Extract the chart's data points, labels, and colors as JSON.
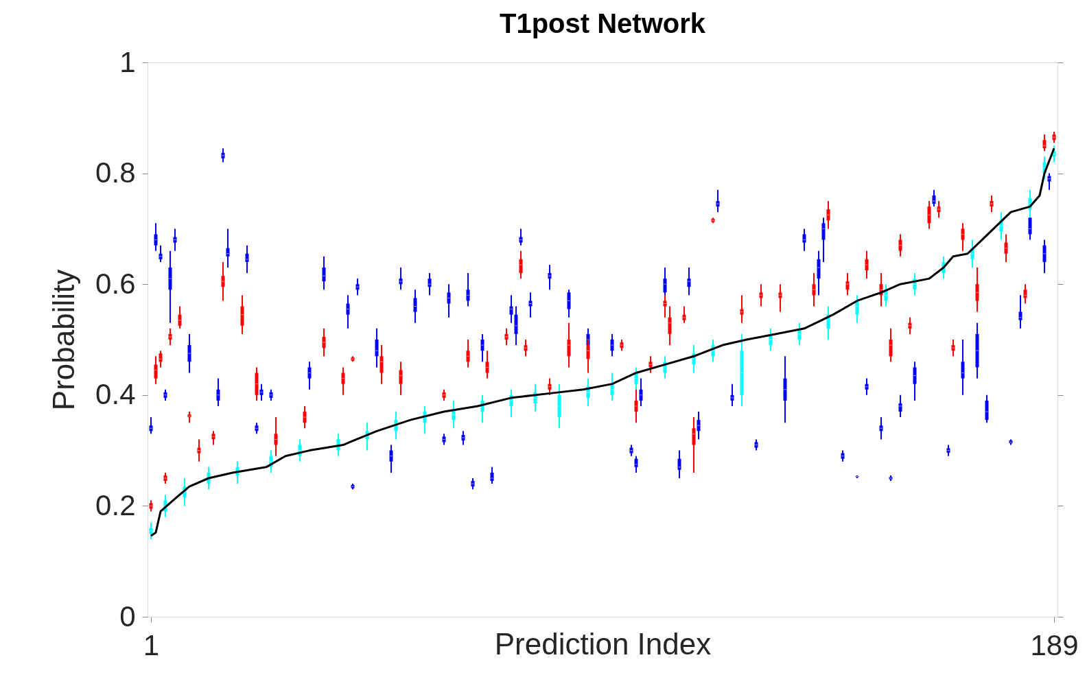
{
  "chart_data": {
    "type": "box",
    "title": "T1post Network",
    "xlabel": "Prediction Index",
    "ylabel": "Probability",
    "xlim": [
      1,
      189
    ],
    "xticks": [
      1,
      189
    ],
    "ylim": [
      0,
      1
    ],
    "yticks": [
      0,
      0.2,
      0.4,
      0.6,
      0.8,
      1
    ],
    "grid": false,
    "series": [
      {
        "type": "box",
        "color": "#0000ff",
        "x": [
          1,
          2,
          3,
          4,
          5,
          6,
          9,
          15,
          16,
          17,
          21,
          23,
          24,
          26,
          34,
          37,
          42,
          43,
          44,
          48,
          51,
          53,
          56,
          59,
          62,
          63,
          66,
          67,
          68,
          70,
          72,
          76,
          77,
          78,
          80,
          84,
          88,
          92,
          97,
          101,
          102,
          103,
          108,
          111,
          113,
          115,
          119,
          122,
          127,
          133,
          137,
          140,
          141,
          145,
          148,
          150,
          153,
          155,
          157,
          160,
          164,
          167,
          170,
          173,
          175,
          180,
          182,
          184,
          187,
          188
        ],
        "boxes": [
          {
            "low": 0.33,
            "q1": 0.335,
            "median": 0.34,
            "q3": 0.345,
            "high": 0.36
          },
          {
            "low": 0.66,
            "q1": 0.67,
            "median": 0.68,
            "q3": 0.69,
            "high": 0.71
          },
          {
            "low": 0.64,
            "q1": 0.645,
            "median": 0.65,
            "q3": 0.655,
            "high": 0.67
          },
          {
            "low": 0.39,
            "q1": 0.395,
            "median": 0.4,
            "q3": 0.405,
            "high": 0.41
          },
          {
            "low": 0.53,
            "q1": 0.59,
            "median": 0.61,
            "q3": 0.63,
            "high": 0.66
          },
          {
            "low": 0.66,
            "q1": 0.675,
            "median": 0.68,
            "q3": 0.685,
            "high": 0.7
          },
          {
            "low": 0.44,
            "q1": 0.46,
            "median": 0.475,
            "q3": 0.49,
            "high": 0.51
          },
          {
            "low": 0.38,
            "q1": 0.39,
            "median": 0.4,
            "q3": 0.41,
            "high": 0.43
          },
          {
            "low": 0.82,
            "q1": 0.827,
            "median": 0.832,
            "q3": 0.837,
            "high": 0.845
          },
          {
            "low": 0.63,
            "q1": 0.65,
            "median": 0.655,
            "q3": 0.665,
            "high": 0.7
          },
          {
            "low": 0.62,
            "q1": 0.64,
            "median": 0.645,
            "q3": 0.655,
            "high": 0.67
          },
          {
            "low": 0.33,
            "q1": 0.335,
            "median": 0.34,
            "q3": 0.345,
            "high": 0.35
          },
          {
            "low": 0.39,
            "q1": 0.4,
            "median": 0.405,
            "q3": 0.41,
            "high": 0.42
          },
          {
            "low": 0.39,
            "q1": 0.395,
            "median": 0.4,
            "q3": 0.405,
            "high": 0.41
          },
          {
            "low": 0.41,
            "q1": 0.43,
            "median": 0.44,
            "q3": 0.45,
            "high": 0.46
          },
          {
            "low": 0.59,
            "q1": 0.605,
            "median": 0.615,
            "q3": 0.63,
            "high": 0.65
          },
          {
            "low": 0.52,
            "q1": 0.545,
            "median": 0.555,
            "q3": 0.565,
            "high": 0.58
          },
          {
            "low": 0.23,
            "q1": 0.232,
            "median": 0.235,
            "q3": 0.238,
            "high": 0.24
          },
          {
            "low": 0.58,
            "q1": 0.59,
            "median": 0.595,
            "q3": 0.6,
            "high": 0.61
          },
          {
            "low": 0.45,
            "q1": 0.47,
            "median": 0.48,
            "q3": 0.5,
            "high": 0.52
          },
          {
            "low": 0.26,
            "q1": 0.28,
            "median": 0.29,
            "q3": 0.3,
            "high": 0.31
          },
          {
            "low": 0.59,
            "q1": 0.6,
            "median": 0.605,
            "q3": 0.61,
            "high": 0.63
          },
          {
            "low": 0.53,
            "q1": 0.55,
            "median": 0.56,
            "q3": 0.575,
            "high": 0.59
          },
          {
            "low": 0.58,
            "q1": 0.595,
            "median": 0.6,
            "q3": 0.61,
            "high": 0.62
          },
          {
            "low": 0.31,
            "q1": 0.315,
            "median": 0.32,
            "q3": 0.325,
            "high": 0.33
          },
          {
            "low": 0.54,
            "q1": 0.565,
            "median": 0.575,
            "q3": 0.585,
            "high": 0.6
          },
          {
            "low": 0.31,
            "q1": 0.318,
            "median": 0.323,
            "q3": 0.328,
            "high": 0.335
          },
          {
            "low": 0.56,
            "q1": 0.57,
            "median": 0.58,
            "q3": 0.59,
            "high": 0.62
          },
          {
            "low": 0.23,
            "q1": 0.235,
            "median": 0.24,
            "q3": 0.245,
            "high": 0.25
          },
          {
            "low": 0.46,
            "q1": 0.48,
            "median": 0.49,
            "q3": 0.5,
            "high": 0.51
          },
          {
            "low": 0.24,
            "q1": 0.245,
            "median": 0.25,
            "q3": 0.26,
            "high": 0.27
          },
          {
            "low": 0.53,
            "q1": 0.545,
            "median": 0.555,
            "q3": 0.56,
            "high": 0.58
          },
          {
            "low": 0.49,
            "q1": 0.51,
            "median": 0.525,
            "q3": 0.545,
            "high": 0.56
          },
          {
            "low": 0.67,
            "q1": 0.675,
            "median": 0.68,
            "q3": 0.685,
            "high": 0.7
          },
          {
            "low": 0.54,
            "q1": 0.56,
            "median": 0.565,
            "q3": 0.57,
            "high": 0.585
          },
          {
            "low": 0.59,
            "q1": 0.61,
            "median": 0.615,
            "q3": 0.62,
            "high": 0.635
          },
          {
            "low": 0.54,
            "q1": 0.555,
            "median": 0.57,
            "q3": 0.585,
            "high": 0.59
          },
          {
            "low": 0.47,
            "q1": 0.49,
            "median": 0.5,
            "q3": 0.51,
            "high": 0.52
          },
          {
            "low": 0.47,
            "q1": 0.48,
            "median": 0.49,
            "q3": 0.5,
            "high": 0.51
          },
          {
            "low": 0.29,
            "q1": 0.295,
            "median": 0.3,
            "q3": 0.305,
            "high": 0.31
          },
          {
            "low": 0.26,
            "q1": 0.27,
            "median": 0.275,
            "q3": 0.285,
            "high": 0.29
          },
          {
            "low": 0.38,
            "q1": 0.39,
            "median": 0.4,
            "q3": 0.41,
            "high": 0.43
          },
          {
            "low": 0.56,
            "q1": 0.585,
            "median": 0.6,
            "q3": 0.61,
            "high": 0.63
          },
          {
            "low": 0.25,
            "q1": 0.265,
            "median": 0.27,
            "q3": 0.285,
            "high": 0.3
          },
          {
            "low": 0.58,
            "q1": 0.595,
            "median": 0.605,
            "q3": 0.61,
            "high": 0.63
          },
          {
            "low": 0.32,
            "q1": 0.335,
            "median": 0.345,
            "q3": 0.355,
            "high": 0.37
          },
          {
            "low": 0.73,
            "q1": 0.74,
            "median": 0.745,
            "q3": 0.75,
            "high": 0.77
          },
          {
            "low": 0.38,
            "q1": 0.39,
            "median": 0.395,
            "q3": 0.4,
            "high": 0.42
          },
          {
            "low": 0.3,
            "q1": 0.305,
            "median": 0.31,
            "q3": 0.315,
            "high": 0.32
          },
          {
            "low": 0.35,
            "q1": 0.39,
            "median": 0.41,
            "q3": 0.43,
            "high": 0.47
          },
          {
            "low": 0.66,
            "q1": 0.675,
            "median": 0.68,
            "q3": 0.69,
            "high": 0.7
          },
          {
            "low": 0.58,
            "q1": 0.61,
            "median": 0.63,
            "q3": 0.645,
            "high": 0.66
          },
          {
            "low": 0.64,
            "q1": 0.68,
            "median": 0.7,
            "q3": 0.71,
            "high": 0.72
          },
          {
            "low": 0.28,
            "q1": 0.285,
            "median": 0.29,
            "q3": 0.295,
            "high": 0.3
          },
          {
            "low": 0.25,
            "q1": 0.252,
            "median": 0.253,
            "q3": 0.254,
            "high": 0.255
          },
          {
            "low": 0.4,
            "q1": 0.41,
            "median": 0.415,
            "q3": 0.42,
            "high": 0.43
          },
          {
            "low": 0.32,
            "q1": 0.335,
            "median": 0.34,
            "q3": 0.345,
            "high": 0.36
          },
          {
            "low": 0.245,
            "q1": 0.248,
            "median": 0.25,
            "q3": 0.252,
            "high": 0.255
          },
          {
            "low": 0.36,
            "q1": 0.37,
            "median": 0.38,
            "q3": 0.385,
            "high": 0.4
          },
          {
            "low": 0.39,
            "q1": 0.42,
            "median": 0.435,
            "q3": 0.45,
            "high": 0.46
          },
          {
            "low": 0.74,
            "q1": 0.745,
            "median": 0.75,
            "q3": 0.76,
            "high": 0.77
          },
          {
            "low": 0.29,
            "q1": 0.296,
            "median": 0.3,
            "q3": 0.304,
            "high": 0.31
          },
          {
            "low": 0.4,
            "q1": 0.43,
            "median": 0.44,
            "q3": 0.46,
            "high": 0.5
          },
          {
            "low": 0.43,
            "q1": 0.45,
            "median": 0.48,
            "q3": 0.51,
            "high": 0.53
          },
          {
            "low": 0.35,
            "q1": 0.355,
            "median": 0.37,
            "q3": 0.39,
            "high": 0.4
          },
          {
            "low": 0.31,
            "q1": 0.313,
            "median": 0.315,
            "q3": 0.318,
            "high": 0.32
          },
          {
            "low": 0.52,
            "q1": 0.535,
            "median": 0.54,
            "q3": 0.55,
            "high": 0.58
          },
          {
            "low": 0.68,
            "q1": 0.69,
            "median": 0.7,
            "q3": 0.72,
            "high": 0.73
          },
          {
            "low": 0.62,
            "q1": 0.64,
            "median": 0.655,
            "q3": 0.67,
            "high": 0.68
          },
          {
            "low": 0.77,
            "q1": 0.785,
            "median": 0.79,
            "q3": 0.795,
            "high": 0.8
          }
        ]
      },
      {
        "type": "box",
        "color": "#ff0000",
        "x": [
          1,
          2,
          3,
          4,
          5,
          7,
          9,
          11,
          14,
          16,
          20,
          23,
          27,
          33,
          37,
          41,
          43,
          49,
          53,
          62,
          67,
          71,
          75,
          78,
          79,
          84,
          88,
          92,
          99,
          102,
          105,
          108,
          109,
          112,
          114,
          118,
          124,
          128,
          132,
          139,
          142,
          146,
          150,
          153,
          155,
          157,
          159,
          163,
          165,
          168,
          170,
          173,
          176,
          179,
          183,
          187,
          189
        ],
        "boxes": [
          {
            "low": 0.19,
            "q1": 0.195,
            "median": 0.2,
            "q3": 0.205,
            "high": 0.21
          },
          {
            "low": 0.42,
            "q1": 0.43,
            "median": 0.445,
            "q3": 0.455,
            "high": 0.47
          },
          {
            "low": 0.45,
            "q1": 0.46,
            "median": 0.465,
            "q3": 0.475,
            "high": 0.48
          },
          {
            "low": 0.24,
            "q1": 0.245,
            "median": 0.25,
            "q3": 0.255,
            "high": 0.26
          },
          {
            "low": 0.49,
            "q1": 0.5,
            "median": 0.505,
            "q3": 0.51,
            "high": 0.52
          },
          {
            "low": 0.52,
            "q1": 0.525,
            "median": 0.535,
            "q3": 0.545,
            "high": 0.56
          },
          {
            "low": 0.35,
            "q1": 0.36,
            "median": 0.362,
            "q3": 0.365,
            "high": 0.37
          },
          {
            "low": 0.28,
            "q1": 0.295,
            "median": 0.3,
            "q3": 0.305,
            "high": 0.32
          },
          {
            "low": 0.31,
            "q1": 0.32,
            "median": 0.325,
            "q3": 0.33,
            "high": 0.335
          },
          {
            "low": 0.57,
            "q1": 0.595,
            "median": 0.605,
            "q3": 0.615,
            "high": 0.64
          },
          {
            "low": 0.51,
            "q1": 0.525,
            "median": 0.545,
            "q3": 0.56,
            "high": 0.58
          },
          {
            "low": 0.39,
            "q1": 0.4,
            "median": 0.42,
            "q3": 0.44,
            "high": 0.45
          },
          {
            "low": 0.29,
            "q1": 0.31,
            "median": 0.32,
            "q3": 0.33,
            "high": 0.36
          },
          {
            "low": 0.34,
            "q1": 0.35,
            "median": 0.36,
            "q3": 0.37,
            "high": 0.38
          },
          {
            "low": 0.47,
            "q1": 0.485,
            "median": 0.495,
            "q3": 0.505,
            "high": 0.52
          },
          {
            "low": 0.4,
            "q1": 0.42,
            "median": 0.43,
            "q3": 0.44,
            "high": 0.45
          },
          {
            "low": 0.46,
            "q1": 0.462,
            "median": 0.465,
            "q3": 0.468,
            "high": 0.47
          },
          {
            "low": 0.42,
            "q1": 0.44,
            "median": 0.46,
            "q3": 0.47,
            "high": 0.49
          },
          {
            "low": 0.4,
            "q1": 0.42,
            "median": 0.435,
            "q3": 0.445,
            "high": 0.46
          },
          {
            "low": 0.39,
            "q1": 0.395,
            "median": 0.4,
            "q3": 0.405,
            "high": 0.41
          },
          {
            "low": 0.45,
            "q1": 0.46,
            "median": 0.47,
            "q3": 0.48,
            "high": 0.5
          },
          {
            "low": 0.43,
            "q1": 0.44,
            "median": 0.45,
            "q3": 0.46,
            "high": 0.48
          },
          {
            "low": 0.49,
            "q1": 0.5,
            "median": 0.505,
            "q3": 0.51,
            "high": 0.52
          },
          {
            "low": 0.61,
            "q1": 0.62,
            "median": 0.635,
            "q3": 0.645,
            "high": 0.66
          },
          {
            "low": 0.47,
            "q1": 0.48,
            "median": 0.485,
            "q3": 0.49,
            "high": 0.5
          },
          {
            "low": 0.4,
            "q1": 0.41,
            "median": 0.415,
            "q3": 0.42,
            "high": 0.43
          },
          {
            "low": 0.45,
            "q1": 0.47,
            "median": 0.49,
            "q3": 0.5,
            "high": 0.53
          },
          {
            "low": 0.44,
            "q1": 0.465,
            "median": 0.48,
            "q3": 0.49,
            "high": 0.5
          },
          {
            "low": 0.48,
            "q1": 0.485,
            "median": 0.49,
            "q3": 0.495,
            "high": 0.5
          },
          {
            "low": 0.35,
            "q1": 0.37,
            "median": 0.38,
            "q3": 0.39,
            "high": 0.42
          },
          {
            "low": 0.44,
            "q1": 0.45,
            "median": 0.455,
            "q3": 0.46,
            "high": 0.47
          },
          {
            "low": 0.54,
            "q1": 0.56,
            "median": 0.565,
            "q3": 0.57,
            "high": 0.58
          },
          {
            "low": 0.49,
            "q1": 0.51,
            "median": 0.53,
            "q3": 0.54,
            "high": 0.56
          },
          {
            "low": 0.53,
            "q1": 0.535,
            "median": 0.54,
            "q3": 0.545,
            "high": 0.56
          },
          {
            "low": 0.26,
            "q1": 0.31,
            "median": 0.33,
            "q3": 0.34,
            "high": 0.36
          },
          {
            "low": 0.71,
            "q1": 0.712,
            "median": 0.715,
            "q3": 0.718,
            "high": 0.72
          },
          {
            "low": 0.53,
            "q1": 0.545,
            "median": 0.55,
            "q3": 0.555,
            "high": 0.58
          },
          {
            "low": 0.56,
            "q1": 0.575,
            "median": 0.58,
            "q3": 0.585,
            "high": 0.6
          },
          {
            "low": 0.55,
            "q1": 0.575,
            "median": 0.58,
            "q3": 0.585,
            "high": 0.6
          },
          {
            "low": 0.56,
            "q1": 0.58,
            "median": 0.59,
            "q3": 0.6,
            "high": 0.62
          },
          {
            "low": 0.7,
            "q1": 0.715,
            "median": 0.725,
            "q3": 0.735,
            "high": 0.75
          },
          {
            "low": 0.58,
            "q1": 0.59,
            "median": 0.6,
            "q3": 0.605,
            "high": 0.62
          },
          {
            "low": 0.61,
            "q1": 0.625,
            "median": 0.635,
            "q3": 0.645,
            "high": 0.66
          },
          {
            "low": 0.56,
            "q1": 0.58,
            "median": 0.59,
            "q3": 0.6,
            "high": 0.62
          },
          {
            "low": 0.46,
            "q1": 0.47,
            "median": 0.49,
            "q3": 0.5,
            "high": 0.52
          },
          {
            "low": 0.65,
            "q1": 0.66,
            "median": 0.67,
            "q3": 0.68,
            "high": 0.69
          },
          {
            "low": 0.51,
            "q1": 0.52,
            "median": 0.525,
            "q3": 0.53,
            "high": 0.54
          },
          {
            "low": 0.7,
            "q1": 0.71,
            "median": 0.725,
            "q3": 0.74,
            "high": 0.75
          },
          {
            "low": 0.72,
            "q1": 0.73,
            "median": 0.735,
            "q3": 0.74,
            "high": 0.75
          },
          {
            "low": 0.47,
            "q1": 0.48,
            "median": 0.485,
            "q3": 0.49,
            "high": 0.5
          },
          {
            "low": 0.66,
            "q1": 0.68,
            "median": 0.69,
            "q3": 0.7,
            "high": 0.71
          },
          {
            "low": 0.55,
            "q1": 0.57,
            "median": 0.585,
            "q3": 0.6,
            "high": 0.63
          },
          {
            "low": 0.73,
            "q1": 0.74,
            "median": 0.745,
            "q3": 0.75,
            "high": 0.76
          },
          {
            "low": 0.64,
            "q1": 0.655,
            "median": 0.665,
            "q3": 0.675,
            "high": 0.69
          },
          {
            "low": 0.565,
            "q1": 0.575,
            "median": 0.58,
            "q3": 0.59,
            "high": 0.6
          },
          {
            "low": 0.84,
            "q1": 0.845,
            "median": 0.85,
            "q3": 0.86,
            "high": 0.87
          },
          {
            "low": 0.855,
            "q1": 0.86,
            "median": 0.865,
            "q3": 0.87,
            "high": 0.875
          }
        ]
      },
      {
        "type": "box",
        "color": "#00ffff",
        "x": [
          1,
          4,
          8,
          13,
          19,
          26,
          32,
          40,
          46,
          52,
          58,
          64,
          70,
          76,
          81,
          86,
          92,
          97,
          102,
          108,
          114,
          118,
          124,
          130,
          136,
          142,
          148,
          154,
          160,
          166,
          172,
          178,
          184,
          187,
          189
        ],
        "boxes": [
          {
            "low": 0.14,
            "q1": 0.15,
            "median": 0.155,
            "q3": 0.16,
            "high": 0.17
          },
          {
            "low": 0.18,
            "q1": 0.19,
            "median": 0.2,
            "q3": 0.21,
            "high": 0.22
          },
          {
            "low": 0.2,
            "q1": 0.215,
            "median": 0.225,
            "q3": 0.235,
            "high": 0.25
          },
          {
            "low": 0.23,
            "q1": 0.24,
            "median": 0.25,
            "q3": 0.26,
            "high": 0.27
          },
          {
            "low": 0.24,
            "q1": 0.255,
            "median": 0.26,
            "q3": 0.27,
            "high": 0.28
          },
          {
            "low": 0.26,
            "q1": 0.27,
            "median": 0.28,
            "q3": 0.29,
            "high": 0.3
          },
          {
            "low": 0.28,
            "q1": 0.29,
            "median": 0.3,
            "q3": 0.31,
            "high": 0.32
          },
          {
            "low": 0.29,
            "q1": 0.3,
            "median": 0.31,
            "q3": 0.32,
            "high": 0.33
          },
          {
            "low": 0.3,
            "q1": 0.32,
            "median": 0.325,
            "q3": 0.335,
            "high": 0.35
          },
          {
            "low": 0.32,
            "q1": 0.335,
            "median": 0.345,
            "q3": 0.355,
            "high": 0.37
          },
          {
            "low": 0.33,
            "q1": 0.35,
            "median": 0.36,
            "q3": 0.37,
            "high": 0.38
          },
          {
            "low": 0.34,
            "q1": 0.355,
            "median": 0.365,
            "q3": 0.375,
            "high": 0.39
          },
          {
            "low": 0.35,
            "q1": 0.37,
            "median": 0.38,
            "q3": 0.39,
            "high": 0.4
          },
          {
            "low": 0.36,
            "q1": 0.38,
            "median": 0.39,
            "q3": 0.4,
            "high": 0.41
          },
          {
            "low": 0.37,
            "q1": 0.385,
            "median": 0.395,
            "q3": 0.405,
            "high": 0.42
          },
          {
            "low": 0.34,
            "q1": 0.36,
            "median": 0.38,
            "q3": 0.4,
            "high": 0.42
          },
          {
            "low": 0.38,
            "q1": 0.395,
            "median": 0.405,
            "q3": 0.415,
            "high": 0.43
          },
          {
            "low": 0.39,
            "q1": 0.4,
            "median": 0.41,
            "q3": 0.42,
            "high": 0.44
          },
          {
            "low": 0.41,
            "q1": 0.42,
            "median": 0.43,
            "q3": 0.44,
            "high": 0.45
          },
          {
            "low": 0.43,
            "q1": 0.44,
            "median": 0.45,
            "q3": 0.46,
            "high": 0.47
          },
          {
            "low": 0.44,
            "q1": 0.455,
            "median": 0.465,
            "q3": 0.475,
            "high": 0.49
          },
          {
            "low": 0.46,
            "q1": 0.47,
            "median": 0.48,
            "q3": 0.49,
            "high": 0.5
          },
          {
            "low": 0.38,
            "q1": 0.4,
            "median": 0.44,
            "q3": 0.48,
            "high": 0.51
          },
          {
            "low": 0.48,
            "q1": 0.49,
            "median": 0.5,
            "q3": 0.51,
            "high": 0.52
          },
          {
            "low": 0.49,
            "q1": 0.5,
            "median": 0.51,
            "q3": 0.52,
            "high": 0.53
          },
          {
            "low": 0.5,
            "q1": 0.52,
            "median": 0.535,
            "q3": 0.545,
            "high": 0.56
          },
          {
            "low": 0.53,
            "q1": 0.545,
            "median": 0.56,
            "q3": 0.57,
            "high": 0.58
          },
          {
            "low": 0.56,
            "q1": 0.57,
            "median": 0.58,
            "q3": 0.59,
            "high": 0.6
          },
          {
            "low": 0.58,
            "q1": 0.59,
            "median": 0.6,
            "q3": 0.61,
            "high": 0.62
          },
          {
            "low": 0.61,
            "q1": 0.62,
            "median": 0.63,
            "q3": 0.64,
            "high": 0.65
          },
          {
            "low": 0.63,
            "q1": 0.645,
            "median": 0.655,
            "q3": 0.665,
            "high": 0.68
          },
          {
            "low": 0.68,
            "q1": 0.695,
            "median": 0.705,
            "q3": 0.715,
            "high": 0.73
          },
          {
            "low": 0.72,
            "q1": 0.735,
            "median": 0.745,
            "q3": 0.755,
            "high": 0.77
          },
          {
            "low": 0.79,
            "q1": 0.8,
            "median": 0.81,
            "q3": 0.82,
            "high": 0.83
          },
          {
            "low": 0.82,
            "q1": 0.83,
            "median": 0.835,
            "q3": 0.84,
            "high": 0.85
          }
        ]
      },
      {
        "type": "line",
        "color": "#000000",
        "x": [
          1,
          2,
          3,
          5.6,
          9,
          13,
          18,
          25,
          29,
          34,
          41,
          48,
          55,
          62,
          69,
          76,
          84,
          91,
          97,
          102,
          108,
          114,
          120,
          125,
          131,
          137,
          143,
          148,
          153,
          157,
          163,
          166,
          168,
          171,
          174,
          177,
          180,
          184,
          186,
          187,
          189
        ],
        "values": [
          0.146,
          0.152,
          0.19,
          0.21,
          0.235,
          0.25,
          0.26,
          0.27,
          0.29,
          0.3,
          0.31,
          0.335,
          0.355,
          0.37,
          0.38,
          0.395,
          0.403,
          0.41,
          0.42,
          0.44,
          0.455,
          0.47,
          0.49,
          0.5,
          0.51,
          0.52,
          0.545,
          0.57,
          0.585,
          0.6,
          0.61,
          0.63,
          0.65,
          0.655,
          0.68,
          0.705,
          0.73,
          0.74,
          0.76,
          0.8,
          0.845
        ]
      }
    ]
  }
}
